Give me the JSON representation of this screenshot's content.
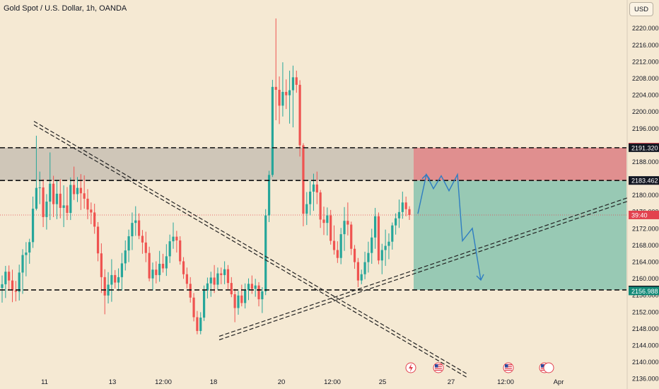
{
  "header": {
    "title": "Gold Spot / U.S. Dollar, 1h, OANDA",
    "currency_button": "USD"
  },
  "colors": {
    "background": "#f5e9d3",
    "candle_up": "#26a69a",
    "candle_down": "#ef5350",
    "loss_zone": "#e08f8f",
    "profit_zone": "#98c9b4",
    "gray_zone": "#cfc6b8",
    "projection": "#2f7dc2"
  },
  "chart_data": {
    "type": "candlestick",
    "symbol": "Gold Spot / U.S. Dollar",
    "timeframe": "1h",
    "broker": "OANDA",
    "ylim": [
      2134.0,
      2223.0
    ],
    "y_ticks": [
      2136,
      2140,
      2144,
      2148,
      2152,
      2156,
      2160,
      2164,
      2168,
      2172,
      2176,
      2180,
      2184,
      2188,
      2192,
      2196,
      2200,
      2204,
      2208,
      2212,
      2216,
      2220
    ],
    "x_tick_labels": [
      "11",
      "13",
      "12:00",
      "18",
      "20",
      "12:00",
      "25",
      "27",
      "12:00",
      "Apr"
    ],
    "horizontal_levels": [
      2191.32,
      2183.462,
      2157.23
    ],
    "price_labels": [
      {
        "text": "2191.478",
        "value": 2191.478,
        "color": "#e2414e"
      },
      {
        "text": "2191.320",
        "value": 2191.32,
        "color": "#131722"
      },
      {
        "text": "2183.497",
        "value": 2183.497,
        "color": "#7e8790"
      },
      {
        "text": "2183.462",
        "value": 2183.462,
        "color": "#131722"
      },
      {
        "text": "39:40",
        "value": 2175.2,
        "color": "#e2414e"
      },
      {
        "text": "2157.230",
        "value": 2157.23,
        "color": "#131722"
      },
      {
        "text": "2156.988",
        "value": 2156.988,
        "color": "#138a78"
      }
    ],
    "current_price": 2175.2,
    "ohlc": [
      [
        2157.7,
        2160.7,
        2154.2,
        2158.6
      ],
      [
        2158.6,
        2163.0,
        2155.3,
        2161.6
      ],
      [
        2161.6,
        2163.1,
        2157.2,
        2159.5
      ],
      [
        2159.5,
        2162.1,
        2154.3,
        2157.1
      ],
      [
        2157.1,
        2159.4,
        2154.5,
        2156.8
      ],
      [
        2156.8,
        2163.3,
        2154.7,
        2161.4
      ],
      [
        2161.4,
        2167.0,
        2156.3,
        2165.6
      ],
      [
        2165.6,
        2168.7,
        2160.5,
        2166.2
      ],
      [
        2166.2,
        2169.5,
        2163.5,
        2168.7
      ],
      [
        2168.7,
        2179.6,
        2167.3,
        2176.7
      ],
      [
        2176.7,
        2194.2,
        2176.3,
        2181.7
      ],
      [
        2181.7,
        2185.6,
        2177.8,
        2181.8
      ],
      [
        2181.8,
        2183.8,
        2172.3,
        2174.7
      ],
      [
        2174.7,
        2180.2,
        2171.7,
        2178.4
      ],
      [
        2178.4,
        2190.2,
        2174.0,
        2182.7
      ],
      [
        2182.7,
        2184.6,
        2174.7,
        2177.8
      ],
      [
        2177.8,
        2183.5,
        2174.2,
        2180.3
      ],
      [
        2180.3,
        2183.8,
        2174.4,
        2176.9
      ],
      [
        2176.9,
        2182.3,
        2172.3,
        2177.5
      ],
      [
        2177.5,
        2181.9,
        2174.0,
        2175.7
      ],
      [
        2175.7,
        2184.2,
        2174.0,
        2182.4
      ],
      [
        2182.4,
        2186.8,
        2178.8,
        2180.2
      ],
      [
        2180.2,
        2184.3,
        2178.3,
        2181.7
      ],
      [
        2181.7,
        2185.0,
        2176.4,
        2180.4
      ],
      [
        2180.4,
        2184.7,
        2176.7,
        2179.1
      ],
      [
        2179.1,
        2181.4,
        2174.2,
        2176.5
      ],
      [
        2176.5,
        2178.2,
        2173.0,
        2175.8
      ],
      [
        2175.8,
        2177.9,
        2170.7,
        2172.4
      ],
      [
        2172.4,
        2173.5,
        2164.1,
        2166.0
      ],
      [
        2166.0,
        2168.4,
        2156.5,
        2160.3
      ],
      [
        2160.3,
        2162.2,
        2151.4,
        2155.9
      ],
      [
        2155.9,
        2161.5,
        2154.0,
        2158.5
      ],
      [
        2158.5,
        2164.6,
        2154.4,
        2160.8
      ],
      [
        2160.8,
        2162.0,
        2157.6,
        2159.0
      ],
      [
        2159.0,
        2162.4,
        2157.0,
        2160.3
      ],
      [
        2160.3,
        2166.1,
        2157.1,
        2163.6
      ],
      [
        2163.6,
        2169.1,
        2161.9,
        2166.7
      ],
      [
        2166.7,
        2171.7,
        2163.9,
        2170.1
      ],
      [
        2170.1,
        2175.8,
        2166.8,
        2173.3
      ],
      [
        2173.3,
        2177.3,
        2170.2,
        2173.9
      ],
      [
        2173.9,
        2175.6,
        2169.4,
        2170.2
      ],
      [
        2170.2,
        2171.6,
        2165.9,
        2168.6
      ],
      [
        2168.6,
        2171.2,
        2163.9,
        2166.1
      ],
      [
        2166.1,
        2167.6,
        2159.3,
        2160.0
      ],
      [
        2160.0,
        2163.8,
        2157.1,
        2162.1
      ],
      [
        2162.1,
        2164.1,
        2158.8,
        2160.8
      ],
      [
        2160.8,
        2166.6,
        2159.2,
        2163.5
      ],
      [
        2163.5,
        2165.9,
        2161.4,
        2162.4
      ],
      [
        2162.4,
        2168.2,
        2160.6,
        2165.3
      ],
      [
        2165.3,
        2170.5,
        2163.7,
        2168.9
      ],
      [
        2168.9,
        2173.4,
        2167.1,
        2170.0
      ],
      [
        2170.0,
        2171.4,
        2166.2,
        2169.1
      ],
      [
        2169.1,
        2170.1,
        2163.3,
        2164.1
      ],
      [
        2164.1,
        2165.1,
        2159.9,
        2161.0
      ],
      [
        2161.0,
        2162.6,
        2157.6,
        2158.7
      ],
      [
        2158.7,
        2160.3,
        2154.2,
        2155.4
      ],
      [
        2155.4,
        2156.5,
        2149.7,
        2150.7
      ],
      [
        2150.7,
        2152.2,
        2146.6,
        2147.4
      ],
      [
        2147.4,
        2151.9,
        2146.6,
        2150.6
      ],
      [
        2150.6,
        2158.3,
        2149.8,
        2157.1
      ],
      [
        2157.1,
        2160.2,
        2155.2,
        2158.8
      ],
      [
        2158.8,
        2161.6,
        2155.6,
        2160.2
      ],
      [
        2160.2,
        2163.2,
        2156.5,
        2158.5
      ],
      [
        2158.5,
        2162.6,
        2157.2,
        2161.2
      ],
      [
        2161.2,
        2162.6,
        2158.6,
        2160.8
      ],
      [
        2160.8,
        2164.1,
        2158.6,
        2162.2
      ],
      [
        2162.2,
        2163.2,
        2157.4,
        2158.9
      ],
      [
        2158.9,
        2160.3,
        2155.5,
        2156.2
      ],
      [
        2156.2,
        2157.5,
        2149.5,
        2152.9
      ],
      [
        2152.9,
        2157.0,
        2151.3,
        2155.9
      ],
      [
        2155.9,
        2158.5,
        2153.3,
        2154.1
      ],
      [
        2154.1,
        2158.8,
        2152.8,
        2157.2
      ],
      [
        2157.2,
        2160.0,
        2154.8,
        2158.7
      ],
      [
        2158.7,
        2160.7,
        2156.3,
        2157.5
      ],
      [
        2157.5,
        2159.9,
        2155.6,
        2158.3
      ],
      [
        2158.3,
        2159.1,
        2153.3,
        2155.0
      ],
      [
        2155.0,
        2157.9,
        2151.7,
        2156.9
      ],
      [
        2156.9,
        2176.6,
        2156.0,
        2175.1
      ],
      [
        2175.1,
        2185.8,
        2173.5,
        2184.8
      ],
      [
        2184.8,
        2207.6,
        2184.3,
        2205.9
      ],
      [
        2205.9,
        2222.3,
        2197.9,
        2205.2
      ],
      [
        2205.2,
        2208.4,
        2197.0,
        2201.4
      ],
      [
        2201.4,
        2211.8,
        2198.8,
        2204.7
      ],
      [
        2204.7,
        2207.7,
        2200.6,
        2203.9
      ],
      [
        2203.9,
        2209.8,
        2197.1,
        2205.1
      ],
      [
        2205.1,
        2211.0,
        2196.2,
        2208.2
      ],
      [
        2208.2,
        2209.8,
        2204.5,
        2206.4
      ],
      [
        2206.4,
        2207.5,
        2189.2,
        2191.9
      ],
      [
        2191.9,
        2192.4,
        2172.5,
        2175.5
      ],
      [
        2175.5,
        2180.7,
        2172.8,
        2177.8
      ],
      [
        2177.8,
        2183.4,
        2175.1,
        2180.8
      ],
      [
        2180.8,
        2185.1,
        2176.2,
        2182.5
      ],
      [
        2182.5,
        2185.6,
        2177.8,
        2180.6
      ],
      [
        2180.6,
        2181.2,
        2172.1,
        2174.1
      ],
      [
        2174.1,
        2177.2,
        2170.4,
        2173.3
      ],
      [
        2173.3,
        2177.0,
        2170.3,
        2175.1
      ],
      [
        2175.1,
        2176.4,
        2168.1,
        2169.0
      ],
      [
        2169.0,
        2172.7,
        2165.7,
        2166.8
      ],
      [
        2166.8,
        2168.9,
        2163.7,
        2164.9
      ],
      [
        2164.9,
        2172.1,
        2163.4,
        2170.6
      ],
      [
        2170.6,
        2177.1,
        2166.6,
        2173.8
      ],
      [
        2173.8,
        2178.2,
        2170.3,
        2172.9
      ],
      [
        2172.9,
        2173.6,
        2165.6,
        2167.1
      ],
      [
        2167.1,
        2168.0,
        2162.3,
        2163.9
      ],
      [
        2163.9,
        2164.9,
        2157.9,
        2159.5
      ],
      [
        2159.5,
        2162.1,
        2158.6,
        2161.0
      ],
      [
        2161.0,
        2166.4,
        2159.8,
        2163.9
      ],
      [
        2163.9,
        2168.8,
        2161.4,
        2166.1
      ],
      [
        2166.1,
        2171.9,
        2163.5,
        2169.8
      ],
      [
        2169.8,
        2176.9,
        2167.1,
        2174.9
      ],
      [
        2174.9,
        2175.8,
        2163.4,
        2164.3
      ],
      [
        2164.3,
        2168.3,
        2161.0,
        2166.8
      ],
      [
        2166.8,
        2171.7,
        2163.0,
        2167.8
      ],
      [
        2167.8,
        2170.8,
        2164.6,
        2168.8
      ],
      [
        2168.8,
        2173.4,
        2166.9,
        2172.7
      ],
      [
        2172.7,
        2175.6,
        2170.5,
        2174.4
      ],
      [
        2174.4,
        2178.9,
        2172.1,
        2175.9
      ],
      [
        2175.9,
        2180.8,
        2174.3,
        2178.2
      ],
      [
        2178.2,
        2179.6,
        2174.9,
        2176.6
      ],
      [
        2176.6,
        2177.3,
        2174.0,
        2175.2
      ]
    ],
    "zones": [
      {
        "name": "gray",
        "from": 2183.462,
        "to": 2191.32
      },
      {
        "name": "loss",
        "from": 2183.462,
        "to": 2191.32
      },
      {
        "name": "profit",
        "from": 2157.23,
        "to": 2183.462
      }
    ],
    "trendlines": [
      {
        "kind": "descending",
        "from": [
          2195.6
        ],
        "to": [
          2135.0
        ]
      },
      {
        "kind": "ascending",
        "from": [
          2147.3
        ],
        "to": [
          2174.5
        ]
      }
    ],
    "projection_path_prices": [
      2175.5,
      2184.9,
      2181.5,
      2184.6,
      2181.0,
      2184.9,
      2169.0,
      2172.0,
      2159.6
    ],
    "event_icons": [
      "lightning",
      "us-flag",
      "us-flag",
      "us-flag"
    ]
  }
}
